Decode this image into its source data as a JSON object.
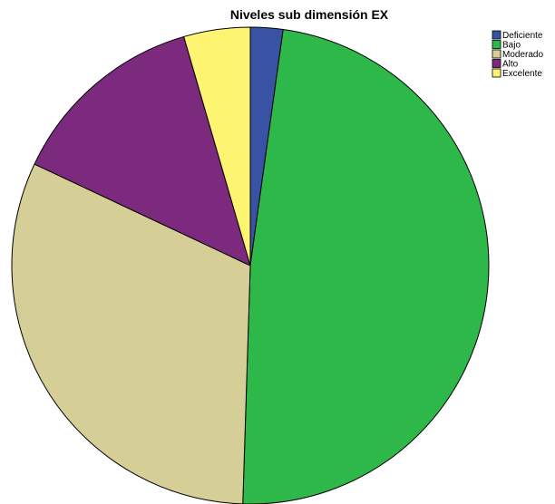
{
  "chart_data": {
    "type": "pie",
    "title": "Niveles sub dimensión EX",
    "categories": [
      "Deficiente",
      "Bajo",
      "Moderado",
      "Alto",
      "Excelente"
    ],
    "values": [
      2.2,
      48.3,
      31.5,
      13.5,
      4.5
    ],
    "colors": [
      "#3953a4",
      "#2fb84a",
      "#d6ce97",
      "#7b2a7d",
      "#fdf572"
    ],
    "start_angle_deg": 0,
    "direction": "clockwise",
    "legend": "top-right",
    "slice_stroke": "#000000"
  }
}
